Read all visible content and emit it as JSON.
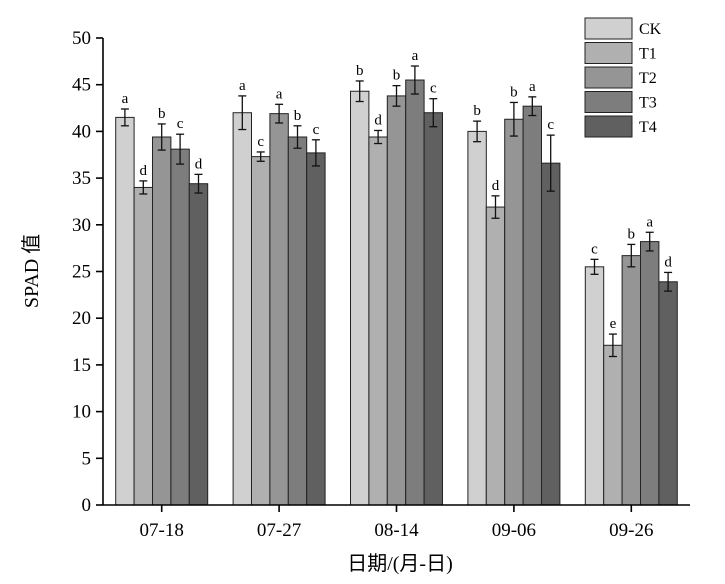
{
  "chart_data": {
    "type": "bar",
    "title": "",
    "xlabel": "日期/(月-日)",
    "ylabel": "SPAD 值",
    "ylim": [
      0,
      50
    ],
    "yticks": [
      0,
      5,
      10,
      15,
      20,
      25,
      30,
      35,
      40,
      45,
      50
    ],
    "categories": [
      "07-18",
      "07-27",
      "08-14",
      "09-06",
      "09-26"
    ],
    "legend_position": "top-right",
    "grid": false,
    "series": [
      {
        "name": "CK",
        "color": "#d0d0d0",
        "values": [
          41.5,
          42.0,
          44.3,
          40.0,
          25.5
        ],
        "errors": [
          0.9,
          1.8,
          1.1,
          1.1,
          0.8
        ],
        "labels": [
          "a",
          "a",
          "b",
          "b",
          "c"
        ]
      },
      {
        "name": "T1",
        "color": "#b0b0b0",
        "values": [
          34.0,
          37.3,
          39.4,
          31.9,
          17.1
        ],
        "errors": [
          0.7,
          0.5,
          0.7,
          1.2,
          1.2
        ],
        "labels": [
          "d",
          "c",
          "d",
          "d",
          "e"
        ]
      },
      {
        "name": "T2",
        "color": "#959595",
        "values": [
          39.4,
          41.9,
          43.8,
          41.3,
          26.7
        ],
        "errors": [
          1.4,
          1.0,
          1.1,
          1.8,
          1.2
        ],
        "labels": [
          "b",
          "a",
          "b",
          "b",
          "b"
        ]
      },
      {
        "name": "T3",
        "color": "#7d7d7d",
        "values": [
          38.1,
          39.4,
          45.5,
          42.7,
          28.2
        ],
        "errors": [
          1.6,
          1.2,
          1.5,
          1.0,
          1.0
        ],
        "labels": [
          "c",
          "b",
          "a",
          "a",
          "a"
        ]
      },
      {
        "name": "T4",
        "color": "#606060",
        "values": [
          34.4,
          37.7,
          42.0,
          36.6,
          23.9
        ],
        "errors": [
          1.0,
          1.4,
          1.5,
          3.0,
          1.0
        ],
        "labels": [
          "d",
          "c",
          "c",
          "c",
          "d"
        ]
      }
    ]
  }
}
